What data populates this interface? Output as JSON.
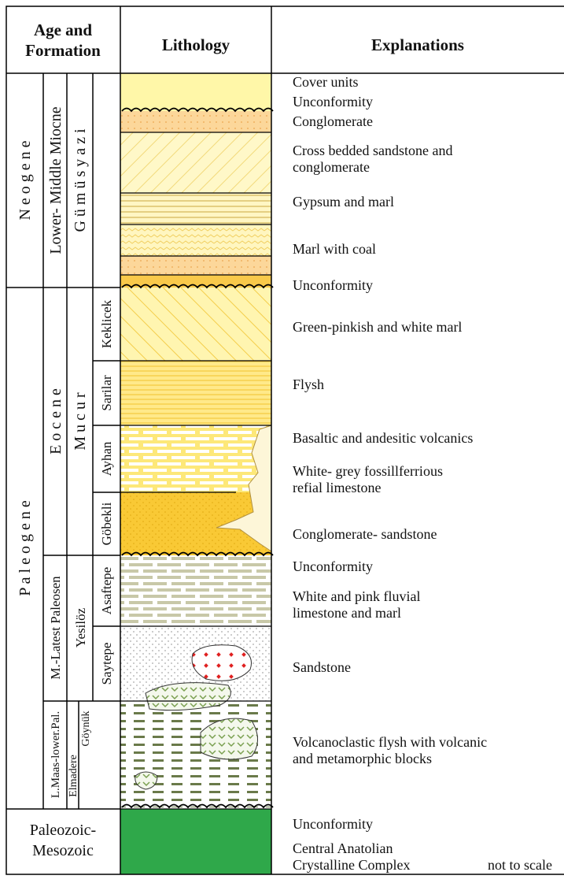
{
  "header": {
    "age": [
      "Age and",
      "Formation"
    ],
    "lithology": "Lithology",
    "explanations": "Explanations"
  },
  "age": {
    "neogene": {
      "era": "N e o g e n e",
      "epoch": "Lower- Middle Miocne",
      "formation": "G ü m ü s y a z i"
    },
    "paleogene": {
      "era": "P a l e o g e n e",
      "epochs": [
        "E o c e n e",
        "M.-Latest Paleosen",
        "L.Maas-lower.Pal."
      ],
      "formations": [
        "M u c u r",
        "Yesilöz",
        "Göynük",
        "Elmadere"
      ],
      "members": [
        "Keklicek",
        "Sarilar",
        "Ayhan",
        "Göbekli",
        "Asaftepe",
        "Saytepe"
      ]
    },
    "basement": [
      "Paleozoic-",
      "Mesozoic"
    ]
  },
  "explanations": [
    [
      "Cover units"
    ],
    [
      "Unconformity"
    ],
    [
      "Conglomerate"
    ],
    [
      "Cross bedded sandstone and",
      "conglomerate"
    ],
    [
      "Gypsum and marl"
    ],
    [
      "Marl with coal"
    ],
    [
      "Unconformity"
    ],
    [
      "Green-pinkish and white marl"
    ],
    [
      "Flysh"
    ],
    [
      "Basaltic and andesitic volcanics"
    ],
    [
      "White- grey fossillferrious",
      "refial limestone"
    ],
    [
      "Conglomerate- sandstone"
    ],
    [
      "Unconformity"
    ],
    [
      "White and pink fluvial",
      "limestone and marl"
    ],
    [
      "Sandstone"
    ],
    [
      "Volcanoclastic flysh with volcanic",
      "and metamorphic blocks"
    ],
    [
      "Unconformity"
    ],
    [
      "Central Anatolian",
      "Crystalline Complex"
    ]
  ],
  "note": "not to scale"
}
